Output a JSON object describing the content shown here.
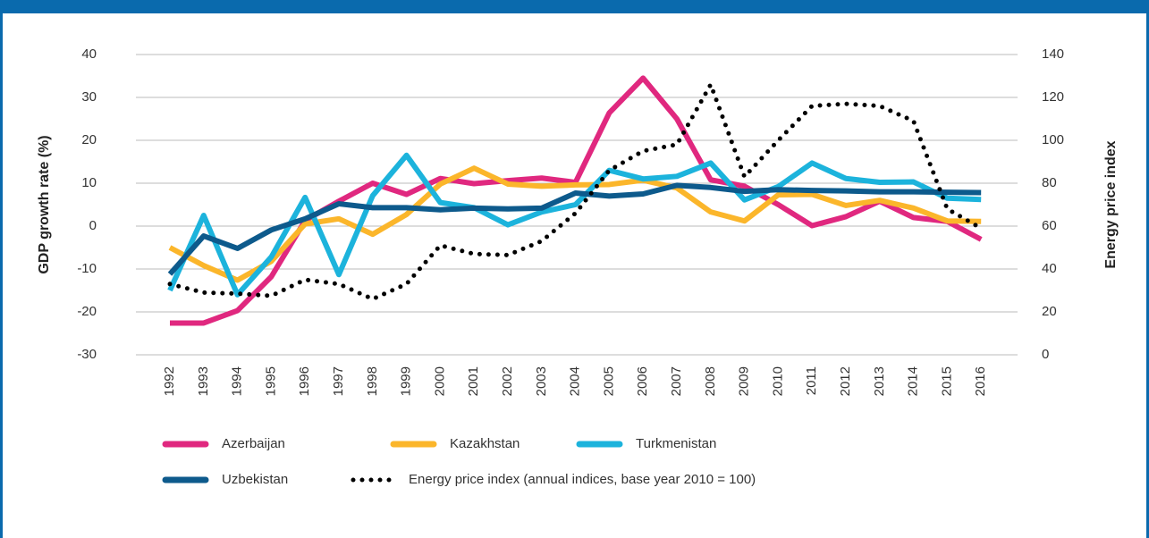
{
  "chart_data": {
    "type": "line",
    "y_label": "GDP growth rate (%)",
    "y2_label": "Energy price index",
    "categories": [
      "1992",
      "1993",
      "1994",
      "1995",
      "1996",
      "1997",
      "1998",
      "1999",
      "2000",
      "2001",
      "2002",
      "2003",
      "2004",
      "2005",
      "2006",
      "2007",
      "2008",
      "2009",
      "2010",
      "2011",
      "2012",
      "2013",
      "2014",
      "2015",
      "2016"
    ],
    "ylim": [
      -30,
      40
    ],
    "yticks": [
      -30,
      -20,
      -10,
      0,
      10,
      20,
      30,
      40
    ],
    "y2lim": [
      0,
      140
    ],
    "y2ticks": [
      0,
      20,
      40,
      60,
      80,
      100,
      120,
      140
    ],
    "grid": true,
    "series": [
      {
        "name": "Azerbaijan",
        "color": "#e0287f",
        "style": "solid",
        "values": [
          -22.6,
          -22.6,
          -19.7,
          -11.8,
          1.3,
          5.8,
          10.0,
          7.4,
          11.1,
          9.9,
          10.6,
          11.2,
          10.2,
          26.4,
          34.5,
          25.0,
          10.8,
          9.3,
          5.0,
          0.1,
          2.2,
          5.8,
          2.0,
          1.1,
          -3.1
        ]
      },
      {
        "name": "Kazakhstan",
        "color": "#fbb62b",
        "style": "solid",
        "values": [
          -5.0,
          -9.2,
          -12.6,
          -8.2,
          0.5,
          1.7,
          -1.9,
          2.7,
          9.8,
          13.5,
          9.8,
          9.3,
          9.6,
          9.7,
          10.7,
          8.9,
          3.3,
          1.2,
          7.3,
          7.4,
          4.8,
          6.0,
          4.2,
          1.2,
          1.1
        ]
      },
      {
        "name": "Turkmenistan",
        "color": "#1cb3dc",
        "style": "solid",
        "values": [
          -15.0,
          2.5,
          -16.0,
          -7.2,
          6.7,
          -11.3,
          7.1,
          16.5,
          5.5,
          4.3,
          0.3,
          3.3,
          5.0,
          13.0,
          11.0,
          11.6,
          14.7,
          6.1,
          9.2,
          14.7,
          11.1,
          10.2,
          10.3,
          6.5,
          6.2
        ]
      },
      {
        "name": "Uzbekistan",
        "color": "#0d5a8c",
        "style": "solid",
        "values": [
          -11.2,
          -2.3,
          -5.2,
          -0.9,
          1.7,
          5.2,
          4.3,
          4.3,
          3.8,
          4.2,
          4.0,
          4.2,
          7.7,
          7.0,
          7.5,
          9.5,
          9.0,
          8.1,
          8.5,
          8.3,
          8.2,
          8.0,
          8.0,
          7.9,
          7.8
        ]
      },
      {
        "name": "Energy price index (annual indices, base year 2010 = 100)",
        "color": "#000000",
        "style": "dotted",
        "axis": "y2",
        "values": [
          33,
          29,
          28.5,
          27.5,
          35,
          33,
          26,
          33,
          51,
          47,
          46.5,
          53,
          66,
          86,
          95,
          98,
          126,
          83,
          100,
          116,
          117,
          116,
          109,
          68,
          59
        ]
      }
    ]
  }
}
